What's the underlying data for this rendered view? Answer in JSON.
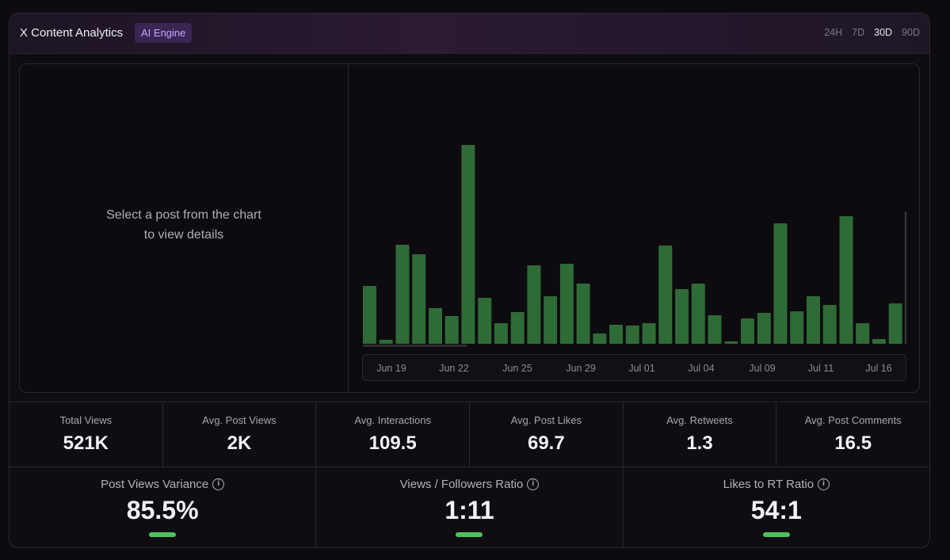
{
  "header": {
    "title": "X Content Analytics",
    "badge": "AI Engine",
    "ranges": [
      "24H",
      "7D",
      "30D",
      "90D"
    ],
    "active_range": "30D"
  },
  "detail": {
    "line1": "Select a post from the chart",
    "line2": "to view details"
  },
  "chart_data": {
    "type": "bar",
    "color": "#2f6b36",
    "x_ticks": [
      "Jun 19",
      "Jun 22",
      "Jun 25",
      "Jun 29",
      "Jul 01",
      "Jul 04",
      "Jul 09",
      "Jul 11",
      "Jul 16"
    ],
    "values": [
      73,
      5,
      125,
      113,
      45,
      35,
      251,
      58,
      26,
      40,
      99,
      60,
      101,
      76,
      13,
      24,
      23,
      26,
      124,
      69,
      76,
      36,
      3,
      32,
      39,
      152,
      41,
      60,
      49,
      161,
      26,
      6,
      51
    ],
    "ylim": [
      0,
      265
    ]
  },
  "stats": [
    {
      "label": "Total Views",
      "value": "521K"
    },
    {
      "label": "Avg. Post Views",
      "value": "2K"
    },
    {
      "label": "Avg. Interactions",
      "value": "109.5"
    },
    {
      "label": "Avg. Post Likes",
      "value": "69.7"
    },
    {
      "label": "Avg. Retweets",
      "value": "1.3"
    },
    {
      "label": "Avg. Post Comments",
      "value": "16.5"
    }
  ],
  "ratios": [
    {
      "label": "Post Views Variance",
      "value": "85.5%"
    },
    {
      "label": "Views / Followers Ratio",
      "value": "1:11"
    },
    {
      "label": "Likes to RT Ratio",
      "value": "54:1"
    }
  ],
  "icons": {
    "info": "info-icon"
  },
  "colors": {
    "accent": "#4cc35f",
    "badge_text": "#c8a5ff",
    "badge_bg": "#3a2653"
  }
}
